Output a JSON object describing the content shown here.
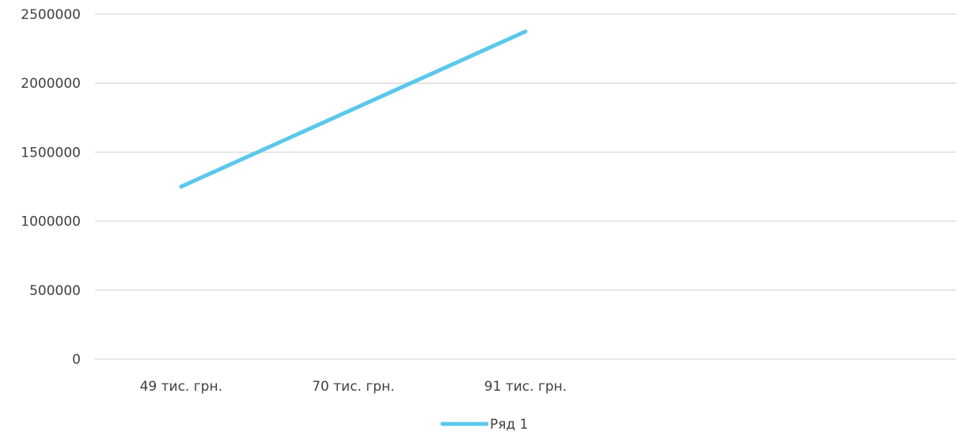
{
  "chart_data": {
    "type": "line",
    "categories": [
      "49 тис. грн.",
      "70 тис. грн.",
      "91 тис. грн.",
      "",
      ""
    ],
    "series": [
      {
        "name": "Ряд 1",
        "values": [
          1250000,
          null,
          2375000,
          null,
          null
        ],
        "color": "#5bc8ea"
      }
    ],
    "ylim": [
      0,
      2500000
    ],
    "yticks": [
      0,
      500000,
      1000000,
      1500000,
      2000000,
      2500000
    ],
    "ytick_labels": [
      "0",
      "500000",
      "1000000",
      "1500000",
      "2000000",
      "2500000"
    ],
    "grid": true,
    "gridline_color": "#d9d9d9",
    "legend_position": "bottom",
    "title": "",
    "xlabel": "",
    "ylabel": ""
  }
}
